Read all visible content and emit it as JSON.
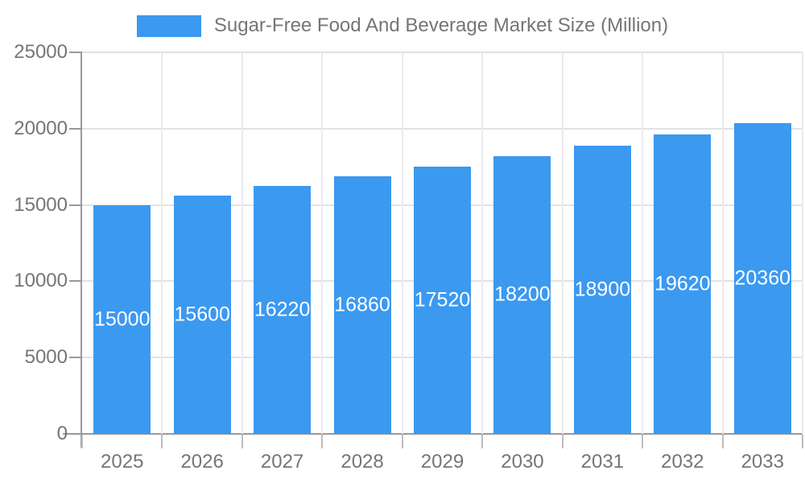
{
  "legend": {
    "label": "Sugar-Free Food And Beverage Market Size (Million)",
    "swatch_color": "#3b99f0"
  },
  "chart_data": {
    "type": "bar",
    "title": "Sugar-Free Food And Beverage Market Size (Million)",
    "categories": [
      "2025",
      "2026",
      "2027",
      "2028",
      "2029",
      "2030",
      "2031",
      "2032",
      "2033"
    ],
    "values": [
      15000,
      15600,
      16220,
      16860,
      17520,
      18200,
      18900,
      19620,
      20360
    ],
    "xlabel": "",
    "ylabel": "",
    "ylim": [
      0,
      25000
    ],
    "yticks": [
      0,
      5000,
      10000,
      15000,
      20000,
      25000
    ],
    "grid": "horizontal and vertical light gray gridlines",
    "legend_position": "top-center",
    "bar_color": "#3b99f0",
    "value_label_color": "#ffffff",
    "axis_text_color": "#757575",
    "axis_line_color": "#999999",
    "gridline_color": "#e2e2e2",
    "value_labels_position": "centered inside bars"
  }
}
